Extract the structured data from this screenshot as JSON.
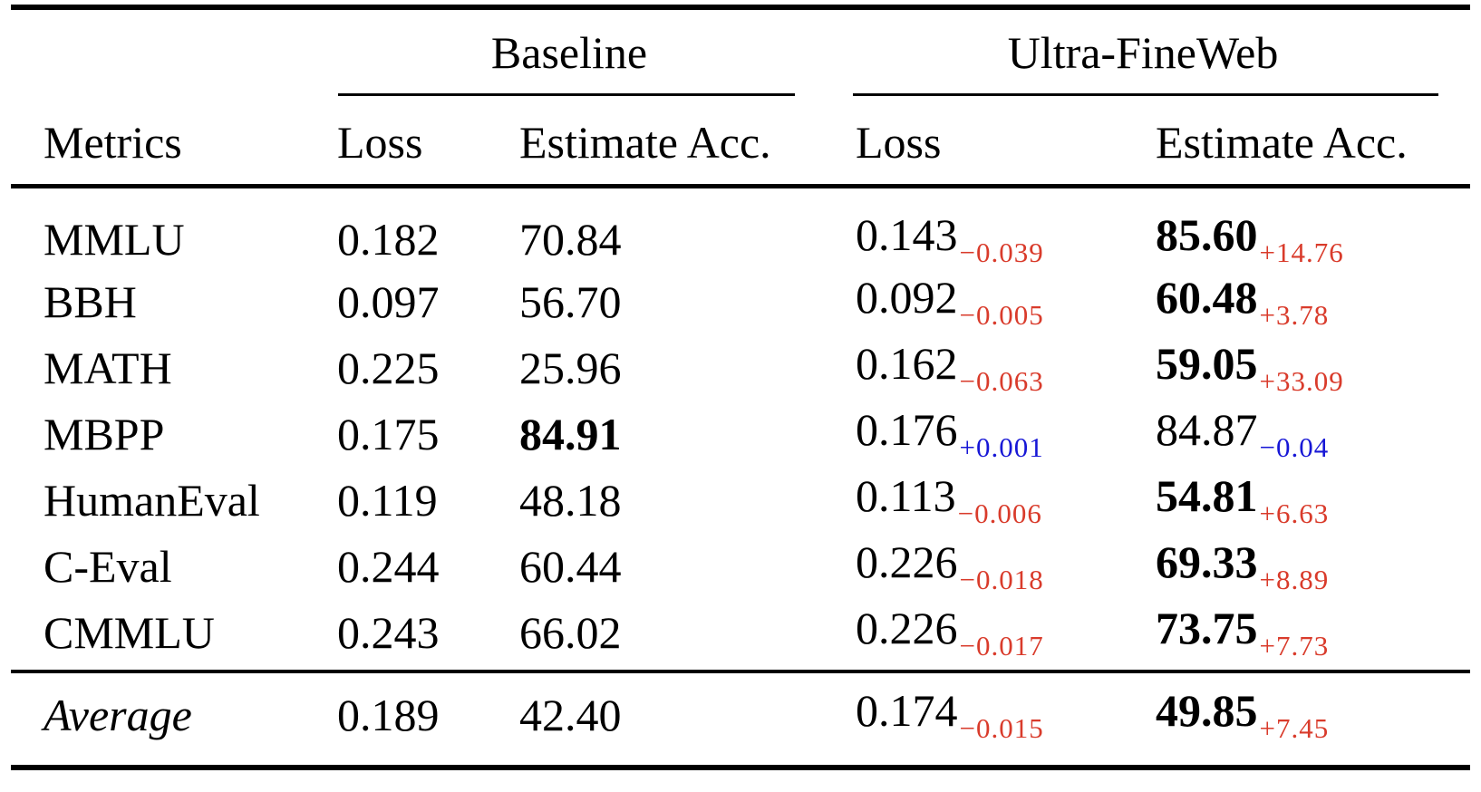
{
  "corner_label": "Metrics",
  "groups": [
    {
      "label": "Baseline",
      "columns": [
        "Loss",
        "Estimate Acc."
      ]
    },
    {
      "label": "Ultra-FineWeb",
      "columns": [
        "Loss",
        "Estimate Acc."
      ]
    }
  ],
  "colors": {
    "improvement_delta": "#d93b2b",
    "regression_delta": "#1717d6"
  },
  "rows": [
    {
      "metric": "MMLU",
      "b_loss": "0.182",
      "b_acc": "70.84",
      "u_loss": "0.143",
      "u_loss_d": "−0.039",
      "u_loss_dc": "#d93b2b",
      "u_acc": "85.60",
      "u_acc_d": "+14.76",
      "u_acc_dc": "#d93b2b"
    },
    {
      "metric": "BBH",
      "b_loss": "0.097",
      "b_acc": "56.70",
      "u_loss": "0.092",
      "u_loss_d": "−0.005",
      "u_loss_dc": "#d93b2b",
      "u_acc": "60.48",
      "u_acc_d": "+3.78",
      "u_acc_dc": "#d93b2b"
    },
    {
      "metric": "MATH",
      "b_loss": "0.225",
      "b_acc": "25.96",
      "u_loss": "0.162",
      "u_loss_d": "−0.063",
      "u_loss_dc": "#d93b2b",
      "u_acc": "59.05",
      "u_acc_d": "+33.09",
      "u_acc_dc": "#d93b2b"
    },
    {
      "metric": "MBPP",
      "b_loss": "0.175",
      "b_acc": "84.91",
      "u_loss": "0.176",
      "u_loss_d": "+0.001",
      "u_loss_dc": "#1717d6",
      "u_acc": "84.87",
      "u_acc_d": "−0.04",
      "u_acc_dc": "#1717d6"
    },
    {
      "metric": "HumanEval",
      "b_loss": "0.119",
      "b_acc": "48.18",
      "u_loss": "0.113",
      "u_loss_d": "−0.006",
      "u_loss_dc": "#d93b2b",
      "u_acc": "54.81",
      "u_acc_d": "+6.63",
      "u_acc_dc": "#d93b2b"
    },
    {
      "metric": "C-Eval",
      "b_loss": "0.244",
      "b_acc": "60.44",
      "u_loss": "0.226",
      "u_loss_d": "−0.018",
      "u_loss_dc": "#d93b2b",
      "u_acc": "69.33",
      "u_acc_d": "+8.89",
      "u_acc_dc": "#d93b2b"
    },
    {
      "metric": "CMMLU",
      "b_loss": "0.243",
      "b_acc": "66.02",
      "u_loss": "0.226",
      "u_loss_d": "−0.017",
      "u_loss_dc": "#d93b2b",
      "u_acc": "73.75",
      "u_acc_d": "+7.73",
      "u_acc_dc": "#d93b2b"
    },
    {
      "metric": "Average",
      "b_loss": "0.189",
      "b_acc": "42.40",
      "u_loss": "0.174",
      "u_loss_d": "−0.015",
      "u_loss_dc": "#d93b2b",
      "u_acc": "49.85",
      "u_acc_d": "+7.45",
      "u_acc_dc": "#d93b2b"
    }
  ]
}
